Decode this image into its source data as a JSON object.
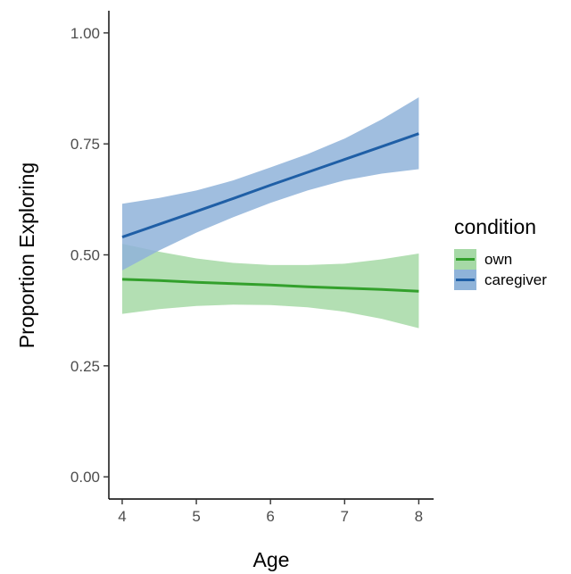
{
  "chart_data": {
    "type": "line",
    "xlabel": "Age",
    "ylabel": "Proportion Exploring",
    "xlim": [
      3.82,
      8.2
    ],
    "ylim": [
      -0.05,
      1.05
    ],
    "x_ticks": [
      4,
      5,
      6,
      7,
      8
    ],
    "x_tick_labels": [
      "4",
      "5",
      "6",
      "7",
      "8"
    ],
    "y_ticks": [
      0,
      0.25,
      0.5,
      0.75,
      1
    ],
    "y_tick_labels": [
      "0.00",
      "0.25",
      "0.50",
      "0.75",
      "1.00"
    ],
    "grid": false,
    "legend": {
      "title": "condition",
      "position": "right"
    },
    "x": [
      4,
      4.5,
      5,
      5.5,
      6,
      6.5,
      7,
      7.5,
      8
    ],
    "series": [
      {
        "name": "own",
        "color": "#33a02c",
        "fill": "#a6d9a6",
        "values": [
          0.445,
          0.442,
          0.438,
          0.435,
          0.432,
          0.428,
          0.425,
          0.422,
          0.418
        ],
        "lower": [
          0.367,
          0.378,
          0.385,
          0.388,
          0.387,
          0.382,
          0.372,
          0.356,
          0.335
        ],
        "upper": [
          0.525,
          0.507,
          0.492,
          0.482,
          0.477,
          0.477,
          0.48,
          0.49,
          0.503
        ]
      },
      {
        "name": "caregiver",
        "color": "#1f5fa6",
        "fill": "#8fb3d9",
        "values": [
          0.54,
          0.569,
          0.598,
          0.627,
          0.657,
          0.686,
          0.715,
          0.744,
          0.773
        ],
        "lower": [
          0.465,
          0.51,
          0.55,
          0.585,
          0.617,
          0.645,
          0.668,
          0.683,
          0.693
        ],
        "upper": [
          0.615,
          0.628,
          0.645,
          0.668,
          0.697,
          0.727,
          0.762,
          0.805,
          0.855
        ]
      }
    ]
  }
}
